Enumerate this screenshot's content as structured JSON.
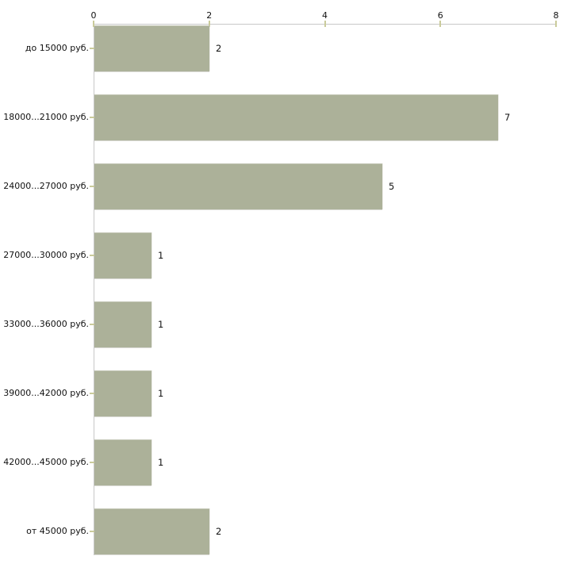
{
  "chart_data": {
    "type": "bar",
    "orientation": "horizontal",
    "title": "",
    "xlabel": "",
    "ylabel": "",
    "categories": [
      "до 15000 руб.",
      "18000...21000 руб.",
      "24000...27000 руб.",
      "27000...30000 руб.",
      "33000...36000 руб.",
      "39000...42000 руб.",
      "42000...45000 руб.",
      "от 45000 руб."
    ],
    "values": [
      2,
      7,
      5,
      1,
      1,
      1,
      1,
      2
    ],
    "value_labels": [
      "2",
      "7",
      "5",
      "1",
      "1",
      "1",
      "1",
      "2"
    ],
    "xlim": [
      0,
      8
    ],
    "x_ticks": [
      0,
      2,
      4,
      6,
      8
    ],
    "x_tick_labels": [
      "0",
      "2",
      "4",
      "6",
      "8"
    ],
    "axis_position": "top",
    "grid": false,
    "legend": "none",
    "colors": {
      "bar_fill": "#acb199",
      "axis_line": "#c7c7c7",
      "tick_mark": "#cacb9b",
      "text": "#111111",
      "background": "#ffffff"
    }
  }
}
